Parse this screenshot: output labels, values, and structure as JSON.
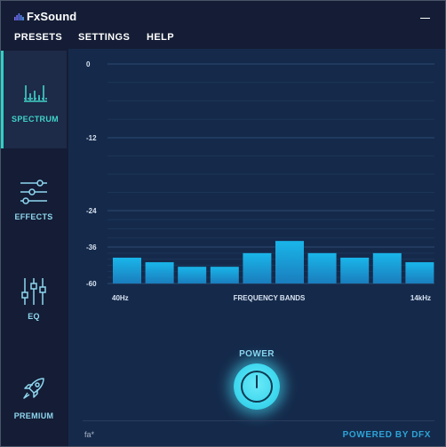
{
  "app": {
    "title": "FxSound",
    "accent": "#2fd0c4",
    "bar_color": "#1aa6e0"
  },
  "menu": {
    "items": [
      {
        "label": "PRESETS"
      },
      {
        "label": "SETTINGS"
      },
      {
        "label": "HELP"
      }
    ]
  },
  "sidebar": {
    "items": [
      {
        "label": "SPECTRUM",
        "icon": "spectrum-icon",
        "active": true
      },
      {
        "label": "EFFECTS",
        "icon": "sliders-icon",
        "active": false
      },
      {
        "label": "EQ",
        "icon": "eq-icon",
        "active": false
      },
      {
        "label": "PREMIUM",
        "icon": "rocket-icon",
        "active": false
      }
    ]
  },
  "chart_data": {
    "type": "bar",
    "title": "",
    "xlabel": "FREQUENCY BANDS",
    "x_tick_labels": [
      "40Hz",
      "14kHz"
    ],
    "ylabel": "",
    "y_ticks": [
      "0",
      "-12",
      "-24",
      "-36",
      "-60"
    ],
    "y_tick_values": [
      0,
      -12,
      -24,
      -36,
      -60
    ],
    "ylim": [
      -60,
      0
    ],
    "grid": true,
    "values": [
      -43,
      -46,
      -49,
      -49,
      -40,
      -34,
      -40,
      -43,
      -40,
      -46
    ]
  },
  "power": {
    "label": "POWER",
    "icon": "power-icon"
  },
  "footer": {
    "left_text": "fa*",
    "right_text": "POWERED BY DFX"
  }
}
